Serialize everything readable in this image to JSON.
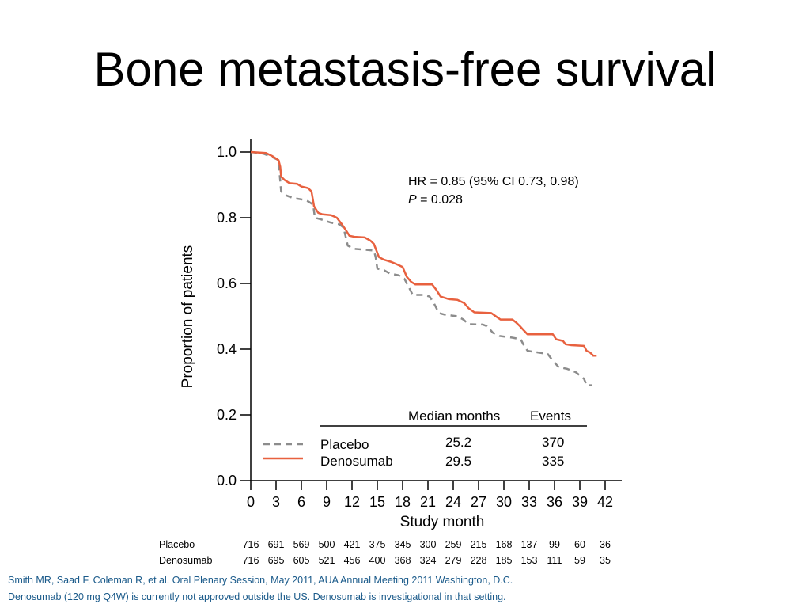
{
  "slide": {
    "title": "Bone metastasis-free survival",
    "footer_reference": "Smith MR, Saad F, Coleman R, et al. Oral Plenary Session, May 2011, AUA  Annual Meeting 2011 Washington, D.C.",
    "footer_note": "Denosumab (120 mg Q4W) is currently not approved outside the US. Denosumab is investigational in that setting."
  },
  "chart_data": {
    "type": "line",
    "title": "",
    "xlabel": "Study month",
    "ylabel": "Proportion of patients",
    "xlim": [
      0,
      42
    ],
    "ylim": [
      0,
      1
    ],
    "x_ticks": [
      0,
      3,
      6,
      9,
      12,
      15,
      18,
      21,
      24,
      27,
      30,
      33,
      36,
      39,
      42
    ],
    "y_ticks": [
      "0.0",
      "0.2",
      "0.4",
      "0.6",
      "0.8",
      "1.0"
    ],
    "annotation": {
      "hr_text": "HR = 0.85 (95% CI 0.73, 0.98)",
      "p_label": "P",
      "p_value": " = 0.028"
    },
    "legend": {
      "header_median": "Median months",
      "header_events": "Events"
    },
    "series": [
      {
        "name": "Placebo",
        "color": "#8c8c8c",
        "style": "dashed",
        "median_months": "25.2",
        "events": "370",
        "points": [
          [
            0,
            1.0
          ],
          [
            1.5,
            0.995
          ],
          [
            2.5,
            0.985
          ],
          [
            3.3,
            0.975
          ],
          [
            3.4,
            0.94
          ],
          [
            3.6,
            0.88
          ],
          [
            4.2,
            0.868
          ],
          [
            5.0,
            0.86
          ],
          [
            6.2,
            0.855
          ],
          [
            6.8,
            0.85
          ],
          [
            7.4,
            0.84
          ],
          [
            7.6,
            0.8
          ],
          [
            8.3,
            0.795
          ],
          [
            9.5,
            0.785
          ],
          [
            10.5,
            0.78
          ],
          [
            11.0,
            0.77
          ],
          [
            11.5,
            0.715
          ],
          [
            12.3,
            0.705
          ],
          [
            13.5,
            0.703
          ],
          [
            14.6,
            0.7
          ],
          [
            14.8,
            0.68
          ],
          [
            15.0,
            0.645
          ],
          [
            15.8,
            0.64
          ],
          [
            16.5,
            0.63
          ],
          [
            17.5,
            0.625
          ],
          [
            18.2,
            0.615
          ],
          [
            18.7,
            0.59
          ],
          [
            19.2,
            0.565
          ],
          [
            20.5,
            0.565
          ],
          [
            21.2,
            0.56
          ],
          [
            21.7,
            0.54
          ],
          [
            22.3,
            0.51
          ],
          [
            23.0,
            0.505
          ],
          [
            24.5,
            0.5
          ],
          [
            25.2,
            0.49
          ],
          [
            25.8,
            0.476
          ],
          [
            27.5,
            0.475
          ],
          [
            28.0,
            0.47
          ],
          [
            28.7,
            0.45
          ],
          [
            29.5,
            0.44
          ],
          [
            31.0,
            0.435
          ],
          [
            32.0,
            0.43
          ],
          [
            32.4,
            0.41
          ],
          [
            32.8,
            0.395
          ],
          [
            34.0,
            0.39
          ],
          [
            35.2,
            0.385
          ],
          [
            35.8,
            0.365
          ],
          [
            36.5,
            0.345
          ],
          [
            37.5,
            0.34
          ],
          [
            38.5,
            0.33
          ],
          [
            39.0,
            0.32
          ],
          [
            39.5,
            0.31
          ],
          [
            39.8,
            0.29
          ],
          [
            40.5,
            0.29
          ]
        ]
      },
      {
        "name": "Denosumab",
        "color": "#e8613f",
        "style": "solid",
        "median_months": "29.5",
        "events": "335",
        "points": [
          [
            0,
            1.0
          ],
          [
            1.8,
            0.997
          ],
          [
            2.6,
            0.987
          ],
          [
            3.3,
            0.975
          ],
          [
            3.5,
            0.955
          ],
          [
            3.6,
            0.925
          ],
          [
            4.0,
            0.915
          ],
          [
            4.6,
            0.905
          ],
          [
            5.5,
            0.903
          ],
          [
            6.0,
            0.895
          ],
          [
            6.8,
            0.89
          ],
          [
            7.2,
            0.88
          ],
          [
            7.5,
            0.835
          ],
          [
            8.0,
            0.815
          ],
          [
            8.5,
            0.81
          ],
          [
            9.5,
            0.808
          ],
          [
            10.2,
            0.8
          ],
          [
            10.8,
            0.78
          ],
          [
            11.2,
            0.765
          ],
          [
            11.7,
            0.745
          ],
          [
            12.3,
            0.742
          ],
          [
            13.5,
            0.74
          ],
          [
            14.2,
            0.73
          ],
          [
            14.6,
            0.72
          ],
          [
            14.9,
            0.7
          ],
          [
            15.2,
            0.68
          ],
          [
            15.8,
            0.672
          ],
          [
            16.7,
            0.665
          ],
          [
            17.6,
            0.655
          ],
          [
            18.0,
            0.65
          ],
          [
            18.5,
            0.62
          ],
          [
            19.0,
            0.605
          ],
          [
            19.5,
            0.597
          ],
          [
            21.5,
            0.597
          ],
          [
            22.0,
            0.58
          ],
          [
            22.5,
            0.56
          ],
          [
            23.5,
            0.552
          ],
          [
            24.5,
            0.55
          ],
          [
            25.3,
            0.54
          ],
          [
            25.8,
            0.525
          ],
          [
            26.5,
            0.512
          ],
          [
            28.5,
            0.51
          ],
          [
            29.2,
            0.497
          ],
          [
            29.6,
            0.49
          ],
          [
            31.0,
            0.49
          ],
          [
            31.5,
            0.48
          ],
          [
            31.9,
            0.47
          ],
          [
            32.4,
            0.456
          ],
          [
            32.8,
            0.445
          ],
          [
            34.0,
            0.445
          ],
          [
            35.8,
            0.445
          ],
          [
            36.2,
            0.43
          ],
          [
            37.0,
            0.425
          ],
          [
            37.3,
            0.415
          ],
          [
            38.0,
            0.412
          ],
          [
            39.5,
            0.41
          ],
          [
            39.8,
            0.395
          ],
          [
            40.2,
            0.39
          ],
          [
            40.6,
            0.38
          ],
          [
            41.0,
            0.38
          ]
        ]
      }
    ],
    "at_risk": {
      "rows": [
        {
          "name": "Placebo",
          "values": [
            "716",
            "691",
            "569",
            "500",
            "421",
            "375",
            "345",
            "300",
            "259",
            "215",
            "168",
            "137",
            "99",
            "60",
            "36"
          ]
        },
        {
          "name": "Denosumab",
          "values": [
            "716",
            "695",
            "605",
            "521",
            "456",
            "400",
            "368",
            "324",
            "279",
            "228",
            "185",
            "153",
            "111",
            "59",
            "35"
          ]
        }
      ]
    }
  }
}
